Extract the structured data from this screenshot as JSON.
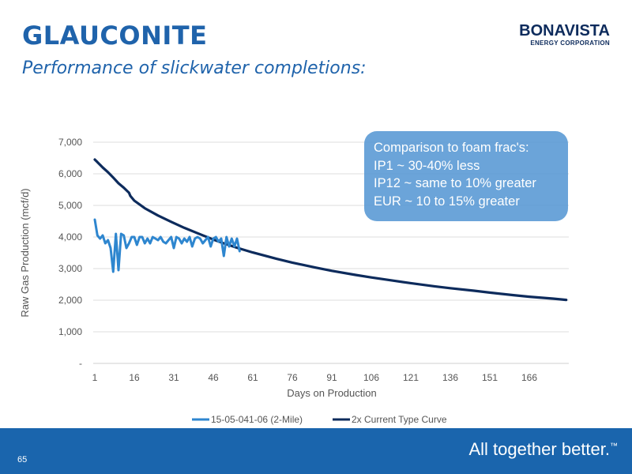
{
  "header": {
    "title": "GLAUCONITE",
    "subtitle": "Performance of slickwater completions:",
    "logo_name": "BONAVISTA",
    "logo_sub": "ENERGY CORPORATION"
  },
  "callout": {
    "lines": [
      "Comparison to foam frac's:",
      "IP1 ~ 30-40% less",
      "IP12 ~ same to 10% greater",
      "EUR ~ 10 to 15% greater"
    ]
  },
  "footer": {
    "page_number": "65",
    "tagline": "All together better.",
    "tagline_mark": "™"
  },
  "colors": {
    "title": "#1f63ab",
    "series_well": "#2e86cf",
    "series_type_curve": "#0d2b5c",
    "callout_bg": "#5b9bd5",
    "footer_bg": "#1a65ad"
  },
  "chart_data": {
    "type": "line",
    "xlabel": "Days on Production",
    "ylabel": "Raw Gas Production (mcf/d)",
    "xlim": [
      1,
      181
    ],
    "ylim": [
      0,
      7000
    ],
    "x_ticks": [
      1,
      16,
      31,
      46,
      61,
      76,
      91,
      106,
      121,
      136,
      151,
      166
    ],
    "x_tick_labels": [
      "1",
      "16",
      "31",
      "46",
      "61",
      "76",
      "91",
      "106",
      "121",
      "136",
      "151",
      "166"
    ],
    "y_ticks": [
      0,
      1000,
      2000,
      3000,
      4000,
      5000,
      6000,
      7000
    ],
    "y_tick_labels": [
      "-",
      "1,000",
      "2,000",
      "3,000",
      "4,000",
      "5,000",
      "6,000",
      "7,000"
    ],
    "grid": true,
    "legend_position": "bottom",
    "series": [
      {
        "name": "15-05-041-06 (2-Mile)",
        "x": [
          1,
          2,
          3,
          4,
          5,
          6,
          7,
          8,
          9,
          10,
          11,
          12,
          13,
          14,
          15,
          16,
          17,
          18,
          19,
          20,
          21,
          22,
          23,
          24,
          25,
          26,
          27,
          28,
          29,
          30,
          31,
          32,
          33,
          34,
          35,
          36,
          37,
          38,
          39,
          40,
          41,
          42,
          43,
          44,
          45,
          46,
          47,
          48,
          49,
          50,
          51,
          52,
          53,
          54,
          55,
          56
        ],
        "values": [
          4550,
          4050,
          3950,
          4050,
          3800,
          3900,
          3650,
          2900,
          4100,
          2950,
          4100,
          4050,
          3650,
          3800,
          4000,
          4000,
          3750,
          4000,
          4000,
          3800,
          3950,
          3800,
          4000,
          3950,
          3900,
          4000,
          3850,
          3800,
          3900,
          4000,
          3650,
          4000,
          3950,
          3800,
          3950,
          3850,
          4000,
          3700,
          3950,
          4000,
          3950,
          3800,
          3900,
          4000,
          3700,
          3950,
          4000,
          3850,
          3950,
          3400,
          4000,
          3700,
          3950,
          3700,
          3950,
          3550
        ]
      },
      {
        "name": "2x Current Type Curve",
        "x": [
          1,
          2,
          4,
          6,
          8,
          10,
          12,
          14,
          14.5,
          16,
          20,
          25,
          30,
          35,
          40,
          46,
          50,
          55,
          61,
          70,
          76,
          85,
          91,
          100,
          106,
          115,
          121,
          130,
          136,
          145,
          151,
          160,
          166,
          175,
          180
        ],
        "values": [
          6450,
          6370,
          6200,
          6050,
          5880,
          5700,
          5560,
          5400,
          5300,
          5150,
          4910,
          4680,
          4480,
          4290,
          4120,
          3920,
          3800,
          3660,
          3510,
          3310,
          3190,
          3030,
          2930,
          2800,
          2720,
          2610,
          2540,
          2440,
          2380,
          2300,
          2240,
          2160,
          2110,
          2050,
          2010
        ]
      }
    ]
  }
}
